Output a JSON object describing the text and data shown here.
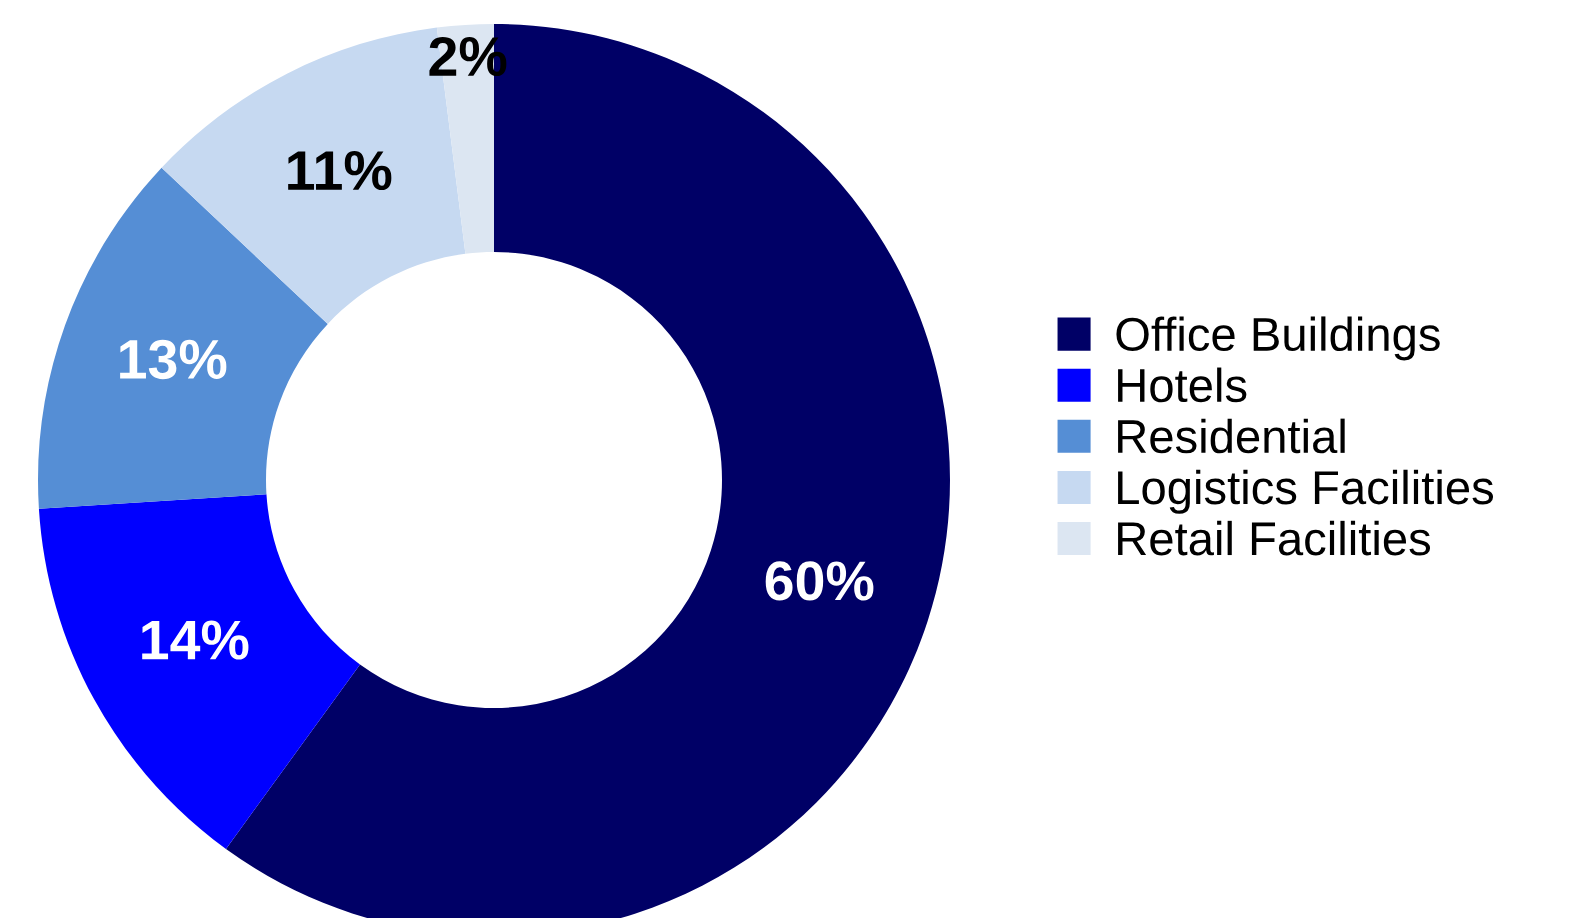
{
  "chart_data": {
    "type": "donut",
    "categories": [
      "Office Buildings",
      "Hotels",
      "Residential",
      "Logistics Facilities",
      "Retail Facilities"
    ],
    "values": [
      60,
      14,
      13,
      11,
      2
    ],
    "colors": [
      "#000066",
      "#0000ff",
      "#558ed5",
      "#c6d9f1",
      "#dce6f2"
    ],
    "value_labels": [
      "60%",
      "14%",
      "13%",
      "11%",
      "2%"
    ],
    "legend": "right"
  }
}
